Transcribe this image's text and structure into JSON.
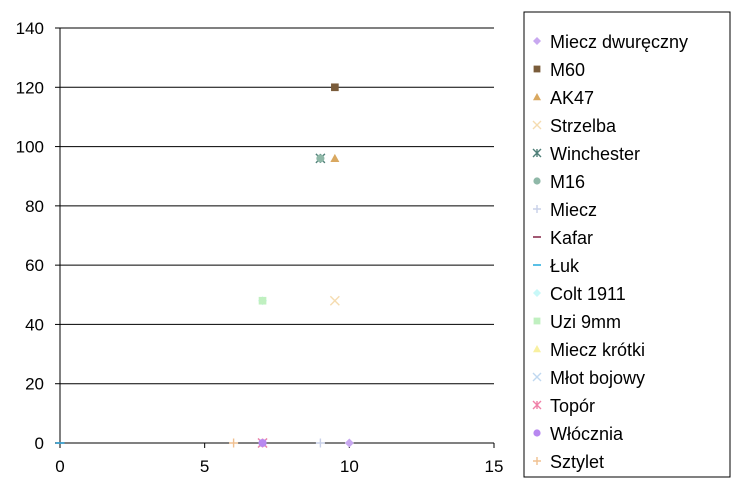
{
  "chart_data": {
    "type": "scatter",
    "title": "",
    "xlabel": "",
    "ylabel": "",
    "xlim": [
      0,
      15
    ],
    "ylim": [
      0,
      140
    ],
    "x_ticks": [
      0,
      5,
      10,
      15
    ],
    "y_ticks": [
      0,
      20,
      40,
      60,
      80,
      100,
      120,
      140
    ],
    "grid": "horizontal major gridlines",
    "legend_position": "right",
    "series": [
      {
        "name": "Miecz dwuręczny",
        "marker": "diamond",
        "color": "#c8a8f0",
        "points": [
          [
            10,
            0
          ]
        ]
      },
      {
        "name": "M60",
        "marker": "square",
        "color": "#7a5c3a",
        "points": [
          [
            9.5,
            120
          ]
        ]
      },
      {
        "name": "AK47",
        "marker": "triangle",
        "color": "#d9a860",
        "points": [
          [
            9.5,
            96
          ]
        ]
      },
      {
        "name": "Strzelba",
        "marker": "x",
        "color": "#f5dcb0",
        "points": [
          [
            9.5,
            48
          ]
        ]
      },
      {
        "name": "Winchester",
        "marker": "star",
        "color": "#4f7f78",
        "points": [
          [
            9,
            96
          ]
        ]
      },
      {
        "name": "M16",
        "marker": "circle",
        "color": "#8fb8a8",
        "points": [
          [
            9,
            96
          ]
        ]
      },
      {
        "name": "Miecz",
        "marker": "plus",
        "color": "#c8d0e8",
        "points": [
          [
            9,
            0
          ]
        ]
      },
      {
        "name": "Kafar",
        "marker": "dash",
        "color": "#8a3050",
        "points": [
          [
            0,
            0
          ]
        ]
      },
      {
        "name": "Łuk",
        "marker": "dash",
        "color": "#30b0e0",
        "points": [
          [
            0,
            0
          ]
        ]
      },
      {
        "name": "Colt 1911",
        "marker": "diamond",
        "color": "#c8f8f8",
        "points": [
          [
            7,
            48
          ]
        ]
      },
      {
        "name": "Uzi 9mm",
        "marker": "square",
        "color": "#c0f0c0",
        "points": [
          [
            7,
            48
          ]
        ]
      },
      {
        "name": "Miecz krótki",
        "marker": "triangle",
        "color": "#f8f0a0",
        "points": [
          [
            7,
            0
          ]
        ]
      },
      {
        "name": "Młot bojowy",
        "marker": "x",
        "color": "#c0d8f0",
        "points": [
          [
            7,
            0
          ]
        ]
      },
      {
        "name": "Topór",
        "marker": "star",
        "color": "#f080a8",
        "points": [
          [
            7,
            0
          ]
        ]
      },
      {
        "name": "Włócznia",
        "marker": "circle",
        "color": "#b888f0",
        "points": [
          [
            7,
            0
          ]
        ]
      },
      {
        "name": "Sztylet",
        "marker": "plus",
        "color": "#f0c090",
        "points": [
          [
            6,
            0
          ]
        ]
      }
    ]
  }
}
